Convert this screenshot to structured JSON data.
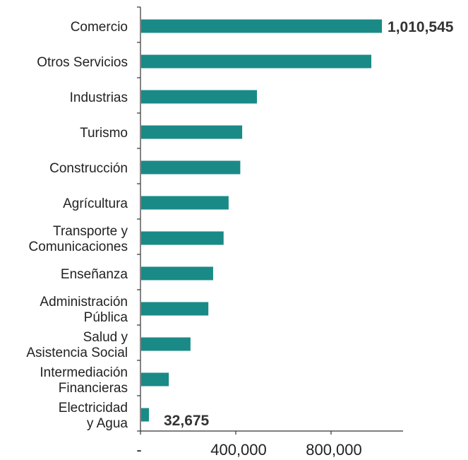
{
  "chart_data": {
    "type": "bar",
    "orientation": "horizontal",
    "categories": [
      "Comercio",
      "Otros Servicios",
      "Industrias",
      "Turismo",
      "Construcción",
      "Agrícultura",
      "Transporte y Comunicaciones",
      "Enseñanza",
      "Administración Pública",
      "Salud y Asistencia Social",
      "Intermediación Financieras",
      "Electricidad y Agua"
    ],
    "category_lines": [
      [
        "Comercio"
      ],
      [
        "Otros Servicios"
      ],
      [
        "Industrias"
      ],
      [
        "Turismo"
      ],
      [
        "Construcción"
      ],
      [
        "Agrícultura"
      ],
      [
        "Transporte y",
        "Comunicaciones"
      ],
      [
        "Enseñanza"
      ],
      [
        "Administración",
        "Pública"
      ],
      [
        "Salud y",
        "Asistencia Social"
      ],
      [
        "Intermediación",
        "Financieras"
      ],
      [
        "Electricidad",
        "y Agua"
      ]
    ],
    "values": [
      1010545,
      966000,
      486000,
      424000,
      416000,
      367000,
      346000,
      302000,
      282000,
      207000,
      116000,
      32675
    ],
    "data_labels": [
      {
        "index": 0,
        "text": "1,010,545"
      },
      {
        "index": 11,
        "text": "32,675"
      }
    ],
    "x_ticks": [
      {
        "value": 0,
        "label": "-"
      },
      {
        "value": 400000,
        "label": "400,000"
      },
      {
        "value": 800000,
        "label": "800,000"
      }
    ],
    "xlim": [
      0,
      1100000
    ],
    "bar_color": "#1a8a87",
    "title": "",
    "xlabel": "",
    "ylabel": "",
    "grid": false
  }
}
